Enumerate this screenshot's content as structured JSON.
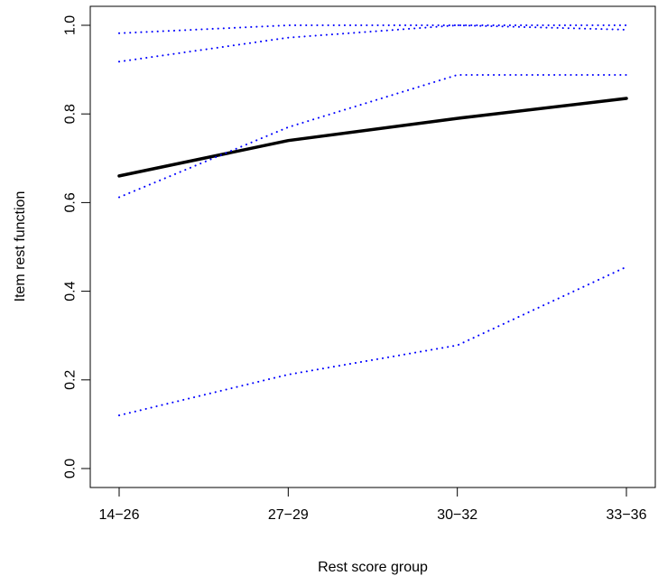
{
  "chart_data": {
    "type": "line",
    "title": "",
    "xlabel": "Rest score group",
    "ylabel": "Item rest function",
    "categories": [
      "14−26",
      "27−29",
      "30−32",
      "33−36"
    ],
    "ylim": [
      0,
      1
    ],
    "yticks": [
      "0.0",
      "0.2",
      "0.4",
      "0.6",
      "0.8",
      "1.0"
    ],
    "grid": false,
    "legend": "none",
    "series": [
      {
        "style": "solid",
        "color": "#000000",
        "values": [
          0.66,
          0.74,
          0.79,
          0.835
        ]
      },
      {
        "style": "dotted",
        "color": "#0000ff",
        "values": [
          0.982,
          1.0,
          1.0,
          1.0
        ]
      },
      {
        "style": "dotted",
        "color": "#0000ff",
        "values": [
          0.918,
          0.972,
          1.0,
          0.99
        ]
      },
      {
        "style": "dotted",
        "color": "#0000ff",
        "values": [
          0.612,
          0.77,
          0.888,
          0.888
        ]
      },
      {
        "style": "dotted",
        "color": "#0000ff",
        "values": [
          0.12,
          0.212,
          0.278,
          0.455
        ]
      }
    ]
  }
}
